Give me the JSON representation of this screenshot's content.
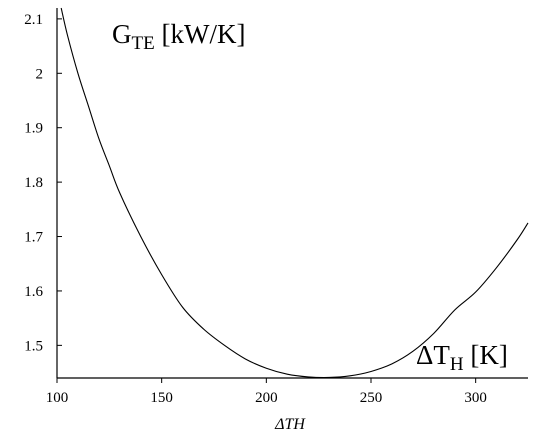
{
  "chart_data": {
    "type": "line",
    "title": "",
    "xlabel": "ΔTH",
    "ylabel": "",
    "xlim": [
      100,
      325
    ],
    "ylim": [
      1.44,
      2.12
    ],
    "grid": false,
    "x_ticks": [
      100,
      150,
      200,
      250,
      300
    ],
    "y_ticks": [
      1.5,
      1.6,
      1.7,
      1.8,
      1.9,
      2,
      2.1
    ],
    "x_tick_labels": [
      "100",
      "150",
      "200",
      "250",
      "300"
    ],
    "y_tick_labels": [
      "1.5",
      "1.6",
      "1.7",
      "1.8",
      "1.9",
      "2",
      "2.1"
    ],
    "annotations": [
      {
        "id": "gte",
        "main": "G",
        "sub": "TE",
        "rest": " [kW/K]"
      },
      {
        "id": "dth",
        "main": "ΔT",
        "sub": "H",
        "rest": " [K]"
      }
    ],
    "series": [
      {
        "x": [
          102,
          105,
          110,
          115,
          120,
          125,
          130,
          140,
          150,
          160,
          170,
          180,
          190,
          200,
          210,
          220,
          230,
          240,
          250,
          260,
          270,
          280,
          290,
          300,
          310,
          320,
          325
        ],
        "y": [
          2.12,
          2.07,
          2.0,
          1.94,
          1.88,
          1.83,
          1.78,
          1.7,
          1.63,
          1.57,
          1.53,
          1.5,
          1.475,
          1.458,
          1.447,
          1.442,
          1.441,
          1.444,
          1.452,
          1.466,
          1.489,
          1.522,
          1.565,
          1.598,
          1.643,
          1.695,
          1.725
        ]
      }
    ]
  }
}
